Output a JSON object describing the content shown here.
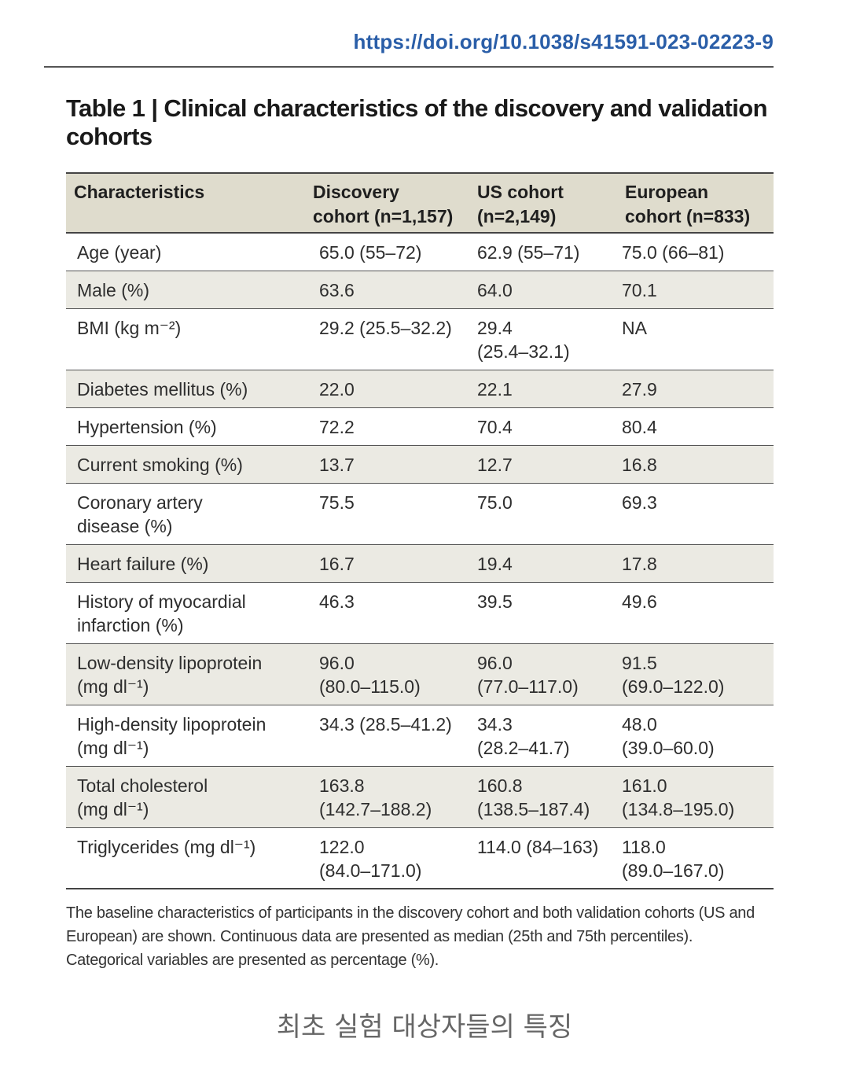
{
  "doi": "https://doi.org/10.1038/s41591-023-02223-9",
  "title": "Table 1 | Clinical characteristics of the discovery and validation cohorts",
  "table": {
    "headers": [
      "Characteristics",
      "Discovery\ncohort (n=1,157)",
      "US cohort\n(n=2,149)",
      "European\ncohort (n=833)"
    ],
    "rows": [
      [
        "Age (year)",
        "65.0 (55–72)",
        "62.9 (55–71)",
        "75.0 (66–81)"
      ],
      [
        "Male (%)",
        "63.6",
        "64.0",
        "70.1"
      ],
      [
        "BMI (kg m⁻²)",
        "29.2 (25.5–32.2)",
        "29.4\n(25.4–32.1)",
        "NA"
      ],
      [
        "Diabetes mellitus (%)",
        "22.0",
        "22.1",
        "27.9"
      ],
      [
        "Hypertension (%)",
        "72.2",
        "70.4",
        "80.4"
      ],
      [
        "Current smoking (%)",
        "13.7",
        "12.7",
        "16.8"
      ],
      [
        "Coronary artery\ndisease (%)",
        "75.5",
        "75.0",
        "69.3"
      ],
      [
        "Heart failure (%)",
        "16.7",
        "19.4",
        "17.8"
      ],
      [
        "History of myocardial\ninfarction (%)",
        "46.3",
        "39.5",
        "49.6"
      ],
      [
        "Low-density lipoprotein\n(mg dl⁻¹)",
        "96.0\n(80.0–115.0)",
        "96.0\n(77.0–117.0)",
        "91.5\n(69.0–122.0)"
      ],
      [
        "High-density lipoprotein\n(mg dl⁻¹)",
        "34.3 (28.5–41.2)",
        "34.3\n(28.2–41.7)",
        "48.0\n(39.0–60.0)"
      ],
      [
        "Total cholesterol\n(mg dl⁻¹)",
        "163.8\n(142.7–188.2)",
        "160.8\n(138.5–187.4)",
        "161.0\n(134.8–195.0)"
      ],
      [
        "Triglycerides (mg dl⁻¹)",
        "122.0\n(84.0–171.0)",
        "114.0 (84–163)",
        "118.0\n(89.0–167.0)"
      ]
    ]
  },
  "footnote": "The baseline characteristics of participants in the discovery cohort and both validation cohorts (US and European) are shown. Continuous data are presented as median (25th and 75th percentiles). Categorical variables are presented as percentage (%).",
  "caption": "최초 실험 대상자들의 특징"
}
